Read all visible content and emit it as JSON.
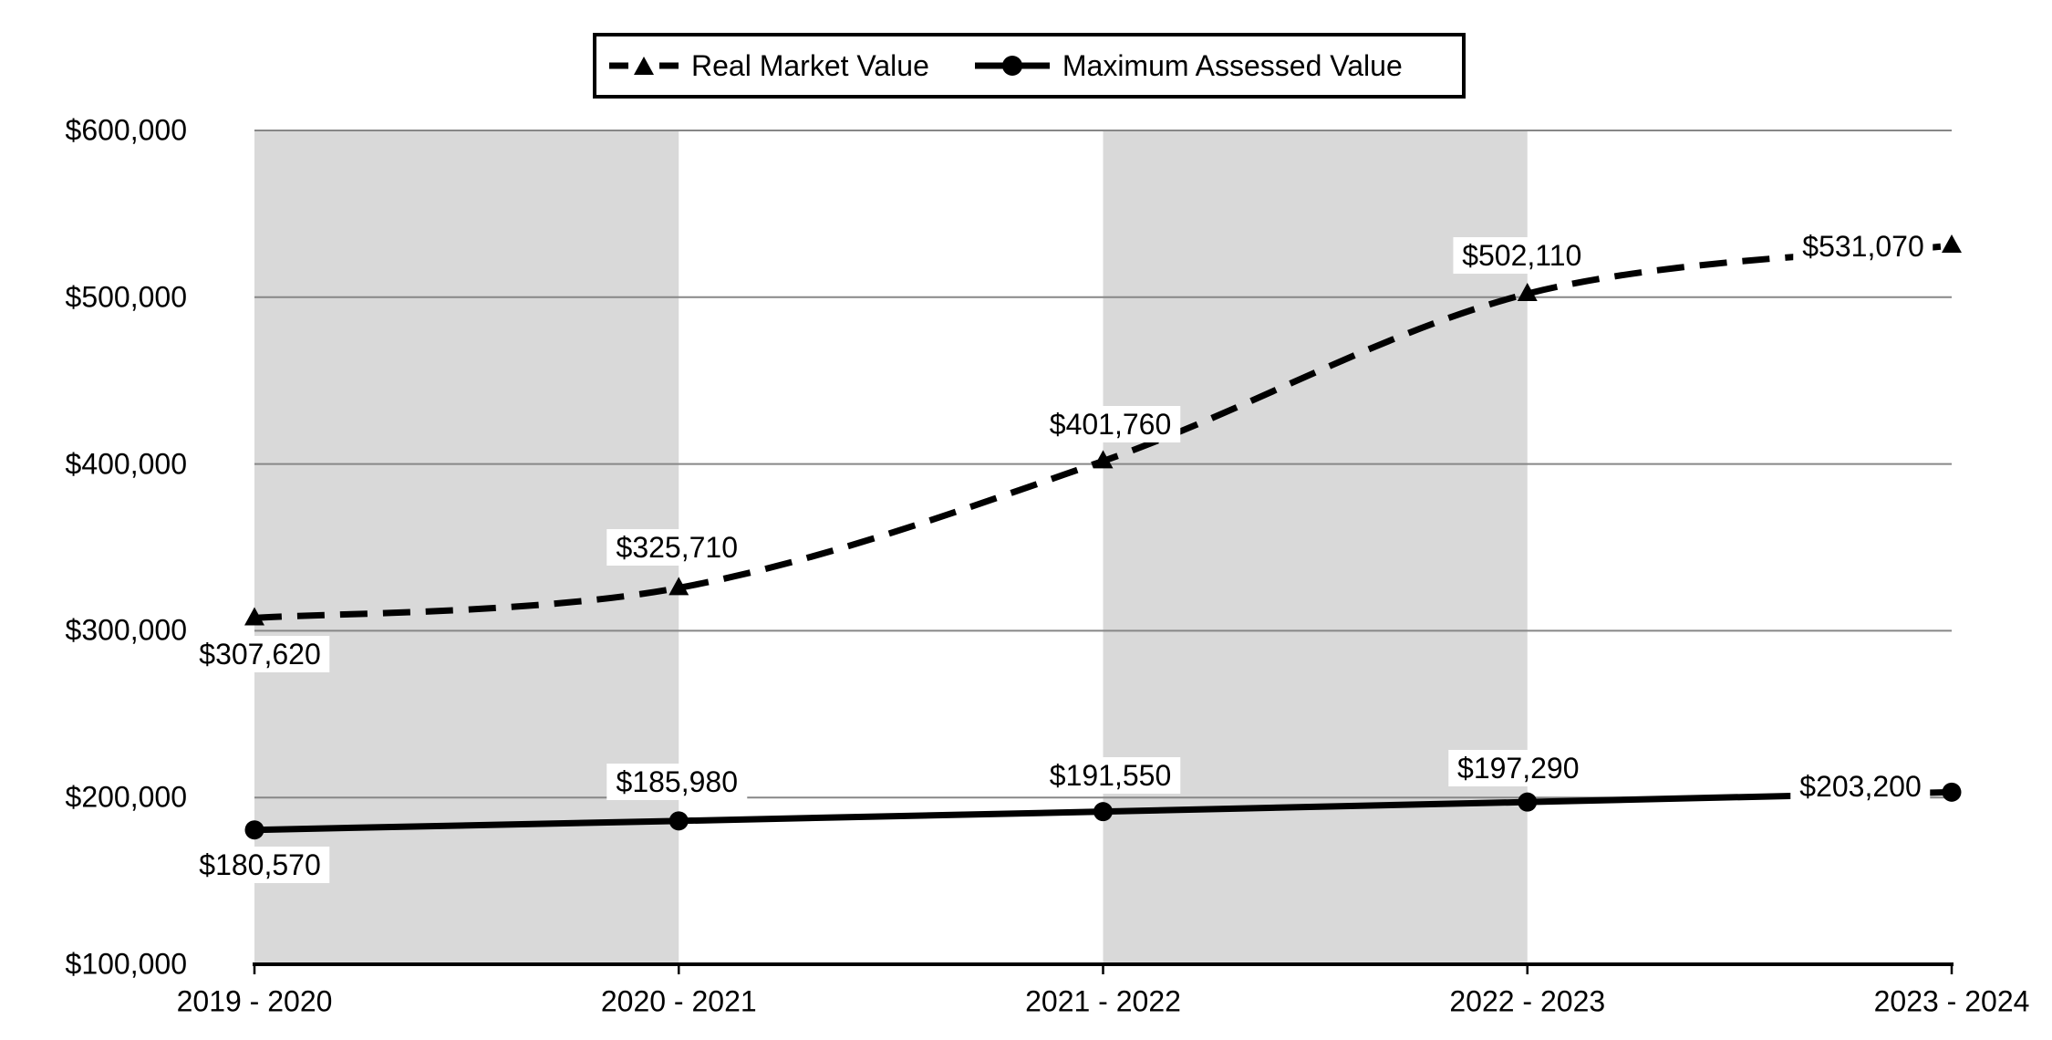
{
  "chart_data": {
    "type": "line",
    "title": "",
    "categories": [
      "2019 - 2020",
      "2020 - 2021",
      "2021 - 2022",
      "2022 - 2023",
      "2023 - 2024"
    ],
    "series": [
      {
        "name": "Real Market Value",
        "line_style": "dashed",
        "marker": "triangle",
        "values": [
          307620,
          325710,
          401760,
          502110,
          531070
        ],
        "labels": [
          "$307,620",
          "$325,710",
          "$401,760",
          "$502,110",
          "$531,070"
        ]
      },
      {
        "name": "Maximum Assessed Value",
        "line_style": "solid",
        "marker": "circle",
        "values": [
          180570,
          185980,
          191550,
          197290,
          203200
        ],
        "labels": [
          "$180,570",
          "$185,980",
          "$191,550",
          "$197,290",
          "$203,200"
        ]
      }
    ],
    "y_axis": {
      "min": 100000,
      "max": 600000,
      "step": 100000,
      "tick_labels": [
        "$100,000",
        "$200,000",
        "$300,000",
        "$400,000",
        "$500,000",
        "$600,000"
      ]
    },
    "grid": true,
    "legend_position": "top-center",
    "shaded_bands": {
      "category_spans": [
        [
          0,
          1
        ],
        [
          2,
          3
        ]
      ],
      "color": "#d9d9d9"
    },
    "colors": {
      "line": "#000000",
      "gridline": "#878787",
      "text": "#000000",
      "background": "#ffffff",
      "label_background": "#ffffff"
    }
  }
}
